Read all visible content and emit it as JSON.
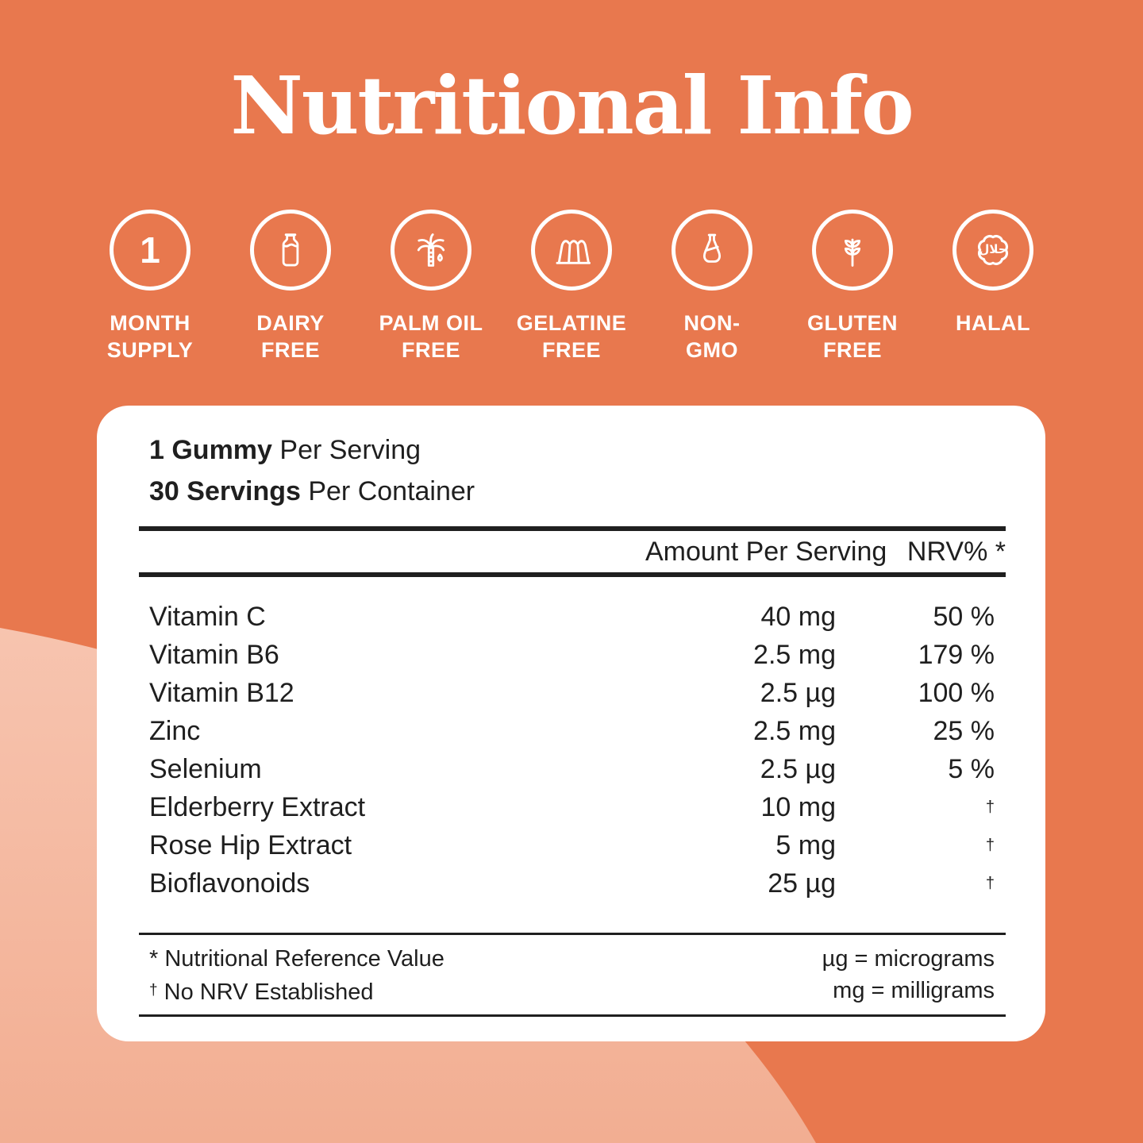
{
  "page": {
    "title": "Nutritional Info"
  },
  "colors": {
    "background": "#E8784E",
    "blob_top": "#F7C4AF",
    "blob_bottom": "#F2AE92",
    "card": "#FFFFFF",
    "text": "#1F1F1F",
    "icon": "#FFFFFF"
  },
  "badges": [
    {
      "id": "month-supply",
      "icon": "number-one-icon",
      "value": "1",
      "line1": "MONTH",
      "line2": "SUPPLY"
    },
    {
      "id": "dairy-free",
      "icon": "milk-bottle-icon",
      "line1": "DAIRY",
      "line2": "FREE"
    },
    {
      "id": "palm-oil-free",
      "icon": "palm-tree-drop-icon",
      "line1": "PALM OIL",
      "line2": "FREE"
    },
    {
      "id": "gelatine-free",
      "icon": "jelly-mold-icon",
      "line1": "GELATINE",
      "line2": "FREE"
    },
    {
      "id": "non-gmo",
      "icon": "lab-flask-icon",
      "line1": "NON-",
      "line2": "GMO"
    },
    {
      "id": "gluten-free",
      "icon": "wheat-sprig-icon",
      "line1": "GLUTEN",
      "line2": "FREE"
    },
    {
      "id": "halal",
      "icon": "halal-seal-icon",
      "arabic": "حلال",
      "line1": "HALAL",
      "line2": ""
    }
  ],
  "panel": {
    "serving1_bold": "1 Gummy",
    "serving1_rest": " Per Serving",
    "serving2_bold": "30 Servings",
    "serving2_rest": " Per Container",
    "header": {
      "amount": "Amount Per Serving",
      "nrv": "NRV% *"
    },
    "rows": [
      {
        "name": "Vitamin C",
        "amount": "40 mg",
        "nrv": "50 %",
        "nrv_is_dagger": false
      },
      {
        "name": "Vitamin B6",
        "amount": "2.5 mg",
        "nrv": "179 %",
        "nrv_is_dagger": false
      },
      {
        "name": "Vitamin B12",
        "amount": "2.5 µg",
        "nrv": "100 %",
        "nrv_is_dagger": false
      },
      {
        "name": "Zinc",
        "amount": "2.5 mg",
        "nrv": "25 %",
        "nrv_is_dagger": false
      },
      {
        "name": "Selenium",
        "amount": "2.5 µg",
        "nrv": "5 %",
        "nrv_is_dagger": false
      },
      {
        "name": "Elderberry Extract",
        "amount": "10 mg",
        "nrv": "†",
        "nrv_is_dagger": true
      },
      {
        "name": "Rose Hip Extract",
        "amount": "5 mg",
        "nrv": "†",
        "nrv_is_dagger": true
      },
      {
        "name": "Bioflavonoids",
        "amount": "25 µg",
        "nrv": "†",
        "nrv_is_dagger": true
      }
    ],
    "footnotes": {
      "left1_marker": "*",
      "left1": "Nutritional Reference Value",
      "left2_marker": "†",
      "left2": "No NRV Established",
      "right1": "µg = micrograms",
      "right2": "mg = milligrams"
    }
  }
}
